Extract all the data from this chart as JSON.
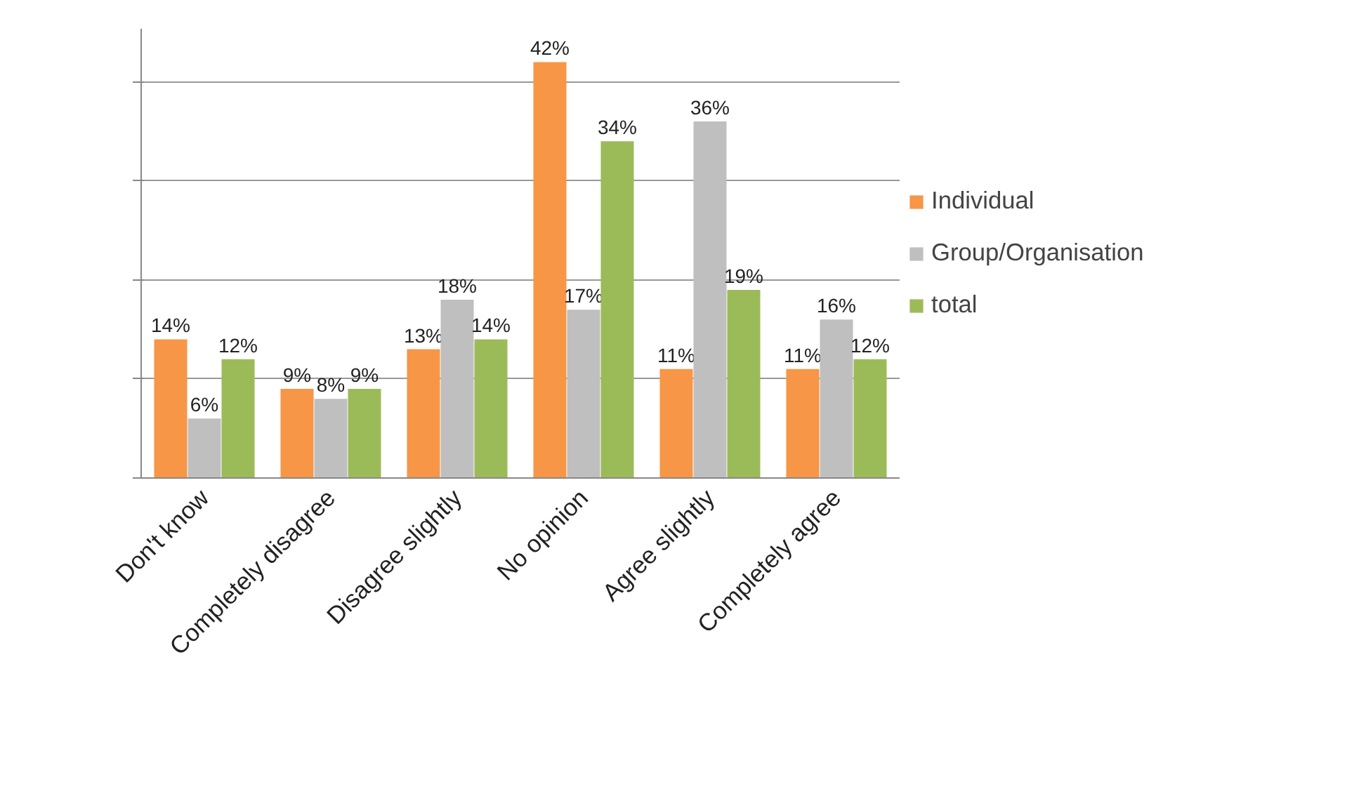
{
  "chart_data": {
    "type": "bar",
    "categories": [
      "Don't know",
      "Completely disagree",
      "Disagree slightly",
      "No opinion",
      "Agree slightly",
      "Completely agree"
    ],
    "series": [
      {
        "name": "Individual",
        "color": "#f79646",
        "values": [
          14,
          9,
          13,
          42,
          11,
          11
        ],
        "value_labels": [
          "14%",
          "9%",
          "13%",
          "42%",
          "11%",
          "11%"
        ]
      },
      {
        "name": "Group/Organisation",
        "color": "#bfbfbf",
        "values": [
          6,
          8,
          18,
          17,
          36,
          16
        ],
        "value_labels": [
          "6%",
          "8%",
          "18%",
          "17%",
          "36%",
          "16%"
        ]
      },
      {
        "name": "total",
        "color": "#9bbb59",
        "values": [
          12,
          9,
          14,
          34,
          19,
          12
        ],
        "value_labels": [
          "12%",
          "9%",
          "14%",
          "34%",
          "19%",
          "12%"
        ]
      }
    ],
    "grid": "y",
    "legend": "right",
    "tick_labels": "x"
  }
}
